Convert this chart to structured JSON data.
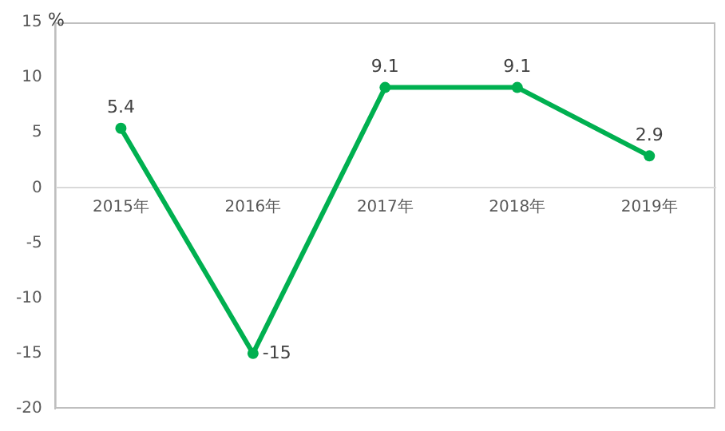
{
  "chart_data": {
    "type": "line",
    "ylabel": "%",
    "categories": [
      "2015年",
      "2016年",
      "2017年",
      "2018年",
      "2019年"
    ],
    "series": [
      {
        "color": "#00b050",
        "values": [
          5.4,
          -15,
          9.1,
          9.1,
          2.9
        ]
      }
    ],
    "ylim": [
      -20,
      15
    ],
    "yticks": [
      -20,
      -15,
      -10,
      -5,
      0,
      5,
      10,
      15
    ],
    "grid": false,
    "legend": false,
    "marker": "circle",
    "line_style": "solid",
    "data_labels": true
  }
}
